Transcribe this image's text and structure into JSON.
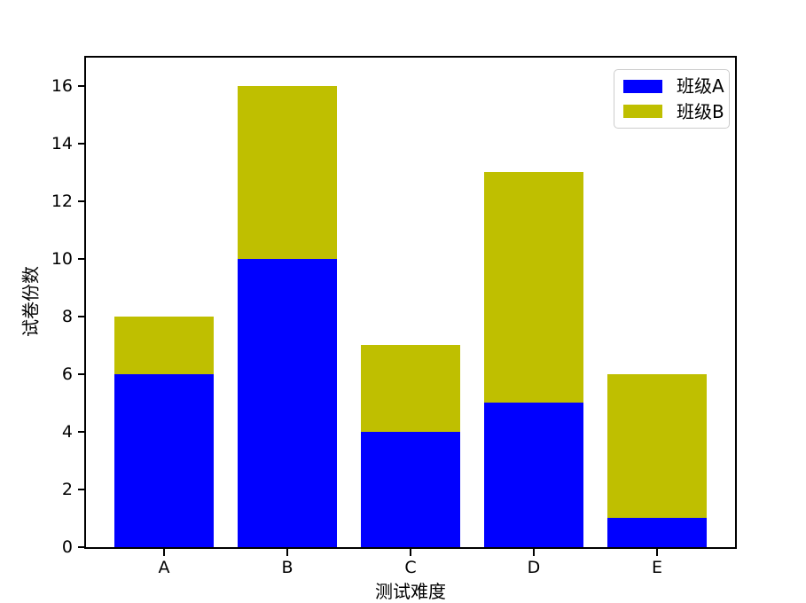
{
  "chart_data": {
    "type": "bar",
    "stacked": true,
    "title": "",
    "xlabel": "测试难度",
    "ylabel": "试卷份数",
    "categories": [
      "A",
      "B",
      "C",
      "D",
      "E"
    ],
    "series": [
      {
        "name": "班级A",
        "color": "#0000ff",
        "values": [
          6,
          10,
          4,
          5,
          1
        ]
      },
      {
        "name": "班级B",
        "color": "#bfbf00",
        "values": [
          2,
          6,
          3,
          8,
          5
        ]
      }
    ],
    "yticks": [
      0,
      2,
      4,
      6,
      8,
      10,
      12,
      14,
      16
    ],
    "ylim": [
      0,
      17
    ],
    "xlim": [
      -0.64,
      4.64
    ],
    "bar_width": 0.8,
    "grid": false,
    "legend_position": "upper-right"
  },
  "colors": {
    "background": "#ffffff",
    "spine": "#000000",
    "text": "#000000",
    "legend_border": "#cccccc",
    "legend_background": "#ffffff"
  }
}
